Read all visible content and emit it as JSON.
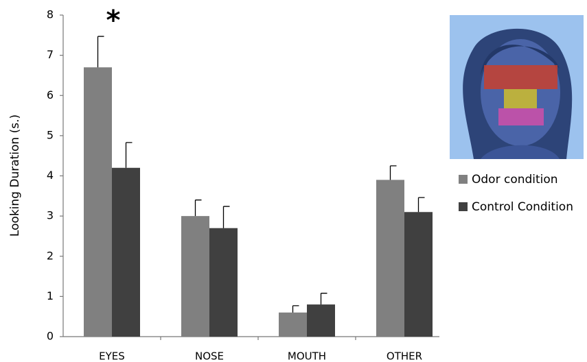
{
  "chart_data": {
    "type": "bar",
    "y_label": "Looking Duration (s.)",
    "annotation": "*",
    "categories": [
      "EYES",
      "NOSE",
      "MOUTH",
      "OTHER"
    ],
    "series": [
      {
        "name": "Odor condition",
        "color": "#808080",
        "values": [
          6.7,
          3.0,
          0.6,
          3.9
        ],
        "errors": [
          0.77,
          0.4,
          0.17,
          0.35
        ]
      },
      {
        "name": "Control Condition",
        "color": "#404040",
        "values": [
          4.2,
          2.7,
          0.8,
          3.1
        ],
        "errors": [
          0.63,
          0.54,
          0.28,
          0.36
        ]
      }
    ],
    "ylim": [
      0,
      8
    ],
    "yticks": [
      0,
      1,
      2,
      3,
      4,
      5,
      6,
      7,
      8
    ]
  }
}
